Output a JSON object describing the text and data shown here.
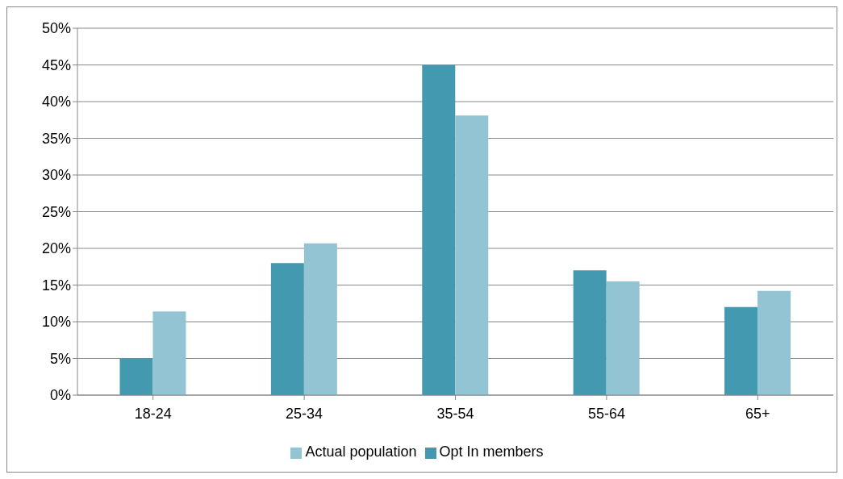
{
  "chart_data": {
    "type": "bar",
    "categories": [
      "18-24",
      "25-34",
      "35-54",
      "55-64",
      "65+"
    ],
    "series": [
      {
        "name": "Opt In members",
        "color": "#4299b0",
        "values": [
          5,
          18,
          45,
          17,
          12
        ]
      },
      {
        "name": "Actual population",
        "color": "#93c4d4",
        "values": [
          11.4,
          20.7,
          38.1,
          15.5,
          14.2
        ]
      }
    ],
    "ylim": [
      0,
      50
    ],
    "yticks": [
      {
        "value": 0,
        "label": "0%"
      },
      {
        "value": 5,
        "label": "5%"
      },
      {
        "value": 10,
        "label": "10%"
      },
      {
        "value": 15,
        "label": "15%"
      },
      {
        "value": 20,
        "label": "20%"
      },
      {
        "value": 25,
        "label": "25%"
      },
      {
        "value": 30,
        "label": "30%"
      },
      {
        "value": 35,
        "label": "35%"
      },
      {
        "value": 40,
        "label": "40%"
      },
      {
        "value": 45,
        "label": "45%"
      },
      {
        "value": 50,
        "label": "50%"
      }
    ],
    "grid": "y",
    "legend": "bottom"
  }
}
